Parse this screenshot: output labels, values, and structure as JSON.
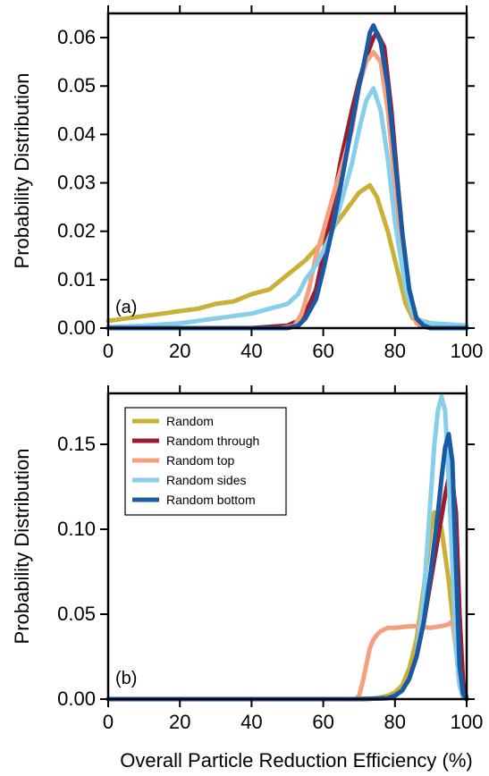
{
  "chart_data": [
    {
      "type": "line",
      "panel_label": "(a)",
      "xlabel": "",
      "ylabel": "Probability Distribution",
      "xlim": [
        0,
        100
      ],
      "ylim": [
        0,
        0.065
      ],
      "xticks": [
        0,
        20,
        40,
        60,
        80,
        100
      ],
      "yticks": [
        0.0,
        0.01,
        0.02,
        0.03,
        0.04,
        0.05,
        0.06
      ],
      "ytick_labels": [
        "0.00",
        "0.01",
        "0.02",
        "0.03",
        "0.04",
        "0.05",
        "0.06"
      ],
      "xtick_labels": [
        "0",
        "20",
        "40",
        "60",
        "80",
        "100"
      ],
      "grid": false,
      "legend": null,
      "series": [
        {
          "name": "Random",
          "color": "#c9b037",
          "x": [
            0,
            5,
            10,
            15,
            20,
            25,
            30,
            35,
            40,
            45,
            50,
            55,
            60,
            65,
            68,
            70,
            72,
            73,
            75,
            78,
            80,
            83,
            85,
            90,
            95,
            100
          ],
          "y": [
            0.0015,
            0.002,
            0.0025,
            0.003,
            0.0035,
            0.004,
            0.005,
            0.0055,
            0.007,
            0.008,
            0.011,
            0.014,
            0.018,
            0.023,
            0.026,
            0.028,
            0.029,
            0.0295,
            0.027,
            0.02,
            0.014,
            0.005,
            0.002,
            0.001,
            0.0005,
            0.0003
          ]
        },
        {
          "name": "Random through",
          "color": "#9b1b30",
          "x": [
            0,
            20,
            40,
            50,
            53,
            55,
            58,
            60,
            63,
            65,
            68,
            70,
            72,
            74,
            75,
            77,
            79,
            81,
            83,
            85,
            87,
            90,
            100
          ],
          "y": [
            0,
            0,
            0,
            0.0005,
            0.0015,
            0.003,
            0.008,
            0.015,
            0.027,
            0.035,
            0.045,
            0.051,
            0.056,
            0.06,
            0.061,
            0.058,
            0.045,
            0.028,
            0.012,
            0.003,
            0.0005,
            0,
            0
          ]
        },
        {
          "name": "Random top",
          "color": "#f4a07e",
          "x": [
            0,
            20,
            40,
            48,
            52,
            54,
            56,
            58,
            60,
            63,
            65,
            68,
            70,
            72,
            74,
            76,
            78,
            80,
            82,
            84,
            86,
            90,
            100
          ],
          "y": [
            0,
            0,
            0,
            0,
            0.0005,
            0.003,
            0.008,
            0.015,
            0.02,
            0.028,
            0.033,
            0.041,
            0.05,
            0.055,
            0.057,
            0.055,
            0.045,
            0.03,
            0.015,
            0.005,
            0.001,
            0,
            0
          ]
        },
        {
          "name": "Random sides",
          "color": "#87ceeb",
          "x": [
            0,
            10,
            20,
            30,
            40,
            45,
            50,
            53,
            55,
            58,
            60,
            63,
            65,
            68,
            70,
            72,
            74,
            76,
            78,
            80,
            83,
            85,
            87,
            90,
            95,
            100
          ],
          "y": [
            0.0002,
            0.0005,
            0.001,
            0.002,
            0.003,
            0.004,
            0.005,
            0.007,
            0.01,
            0.013,
            0.016,
            0.021,
            0.026,
            0.034,
            0.041,
            0.047,
            0.0495,
            0.045,
            0.035,
            0.022,
            0.008,
            0.003,
            0.0015,
            0.001,
            0.0008,
            0.0005
          ]
        },
        {
          "name": "Random bottom",
          "color": "#1a5aa3",
          "x": [
            0,
            20,
            40,
            50,
            53,
            55,
            58,
            60,
            63,
            65,
            68,
            70,
            72,
            73,
            74,
            76,
            78,
            80,
            82,
            84,
            86,
            88,
            90,
            100
          ],
          "y": [
            0,
            0,
            0,
            0,
            0.0005,
            0.002,
            0.006,
            0.012,
            0.022,
            0.03,
            0.042,
            0.05,
            0.057,
            0.061,
            0.0625,
            0.059,
            0.05,
            0.035,
            0.02,
            0.008,
            0.002,
            0.0005,
            0,
            0
          ]
        }
      ]
    },
    {
      "type": "line",
      "panel_label": "(b)",
      "xlabel": "Overall Particle Reduction Efficiency (%)",
      "ylabel": "Probability Distribution",
      "xlim": [
        0,
        100
      ],
      "ylim": [
        0,
        0.18
      ],
      "xticks": [
        0,
        20,
        40,
        60,
        80,
        100
      ],
      "yticks": [
        0.0,
        0.05,
        0.1,
        0.15
      ],
      "ytick_labels": [
        "0.00",
        "0.05",
        "0.10",
        "0.15"
      ],
      "xtick_labels": [
        "0",
        "20",
        "40",
        "60",
        "80",
        "100"
      ],
      "grid": false,
      "legend": "top-left",
      "series": [
        {
          "name": "Random",
          "color": "#c9b037",
          "x": [
            0,
            20,
            40,
            60,
            70,
            75,
            78,
            80,
            82,
            84,
            86,
            88,
            90,
            91,
            92,
            93,
            95,
            97,
            98,
            99,
            100
          ],
          "y": [
            0,
            0,
            0,
            0,
            0,
            0.0005,
            0.002,
            0.004,
            0.008,
            0.018,
            0.035,
            0.065,
            0.1,
            0.11,
            0.108,
            0.1,
            0.07,
            0.03,
            0.01,
            0.002,
            0
          ]
        },
        {
          "name": "Random through",
          "color": "#9b1b30",
          "x": [
            0,
            20,
            40,
            60,
            70,
            78,
            80,
            82,
            84,
            86,
            88,
            90,
            92,
            94,
            95,
            96,
            97,
            98,
            99,
            100
          ],
          "y": [
            0,
            0,
            0,
            0,
            0,
            0.0005,
            0.002,
            0.005,
            0.012,
            0.025,
            0.045,
            0.07,
            0.095,
            0.12,
            0.13,
            0.128,
            0.11,
            0.05,
            0.01,
            0
          ]
        },
        {
          "name": "Random top",
          "color": "#f4a07e",
          "x": [
            0,
            20,
            40,
            60,
            69,
            70,
            71,
            72,
            73,
            74,
            75,
            76,
            77,
            78,
            80,
            85,
            90,
            93,
            95,
            96,
            97,
            98,
            99,
            100
          ],
          "y": [
            0,
            0,
            0,
            0,
            0,
            0.002,
            0.01,
            0.02,
            0.03,
            0.035,
            0.038,
            0.04,
            0.041,
            0.042,
            0.042,
            0.043,
            0.042,
            0.043,
            0.044,
            0.046,
            0.03,
            0.01,
            0.002,
            0
          ]
        },
        {
          "name": "Random sides",
          "color": "#87ceeb",
          "x": [
            0,
            20,
            40,
            60,
            70,
            78,
            80,
            82,
            84,
            86,
            88,
            90,
            91,
            92,
            93,
            94,
            95,
            96,
            97,
            98,
            99,
            100
          ],
          "y": [
            0,
            0,
            0,
            0,
            0,
            0.0005,
            0.002,
            0.005,
            0.012,
            0.025,
            0.06,
            0.12,
            0.15,
            0.17,
            0.178,
            0.17,
            0.13,
            0.08,
            0.03,
            0.008,
            0.001,
            0
          ]
        },
        {
          "name": "Random bottom",
          "color": "#1a5aa3",
          "x": [
            0,
            20,
            40,
            60,
            70,
            78,
            80,
            82,
            84,
            86,
            88,
            90,
            92,
            93,
            94,
            95,
            96,
            97,
            98,
            99,
            100
          ],
          "y": [
            0,
            0,
            0,
            0,
            0,
            0.0005,
            0.002,
            0.005,
            0.012,
            0.025,
            0.045,
            0.075,
            0.11,
            0.13,
            0.148,
            0.156,
            0.14,
            0.08,
            0.02,
            0.003,
            0
          ]
        }
      ]
    }
  ]
}
